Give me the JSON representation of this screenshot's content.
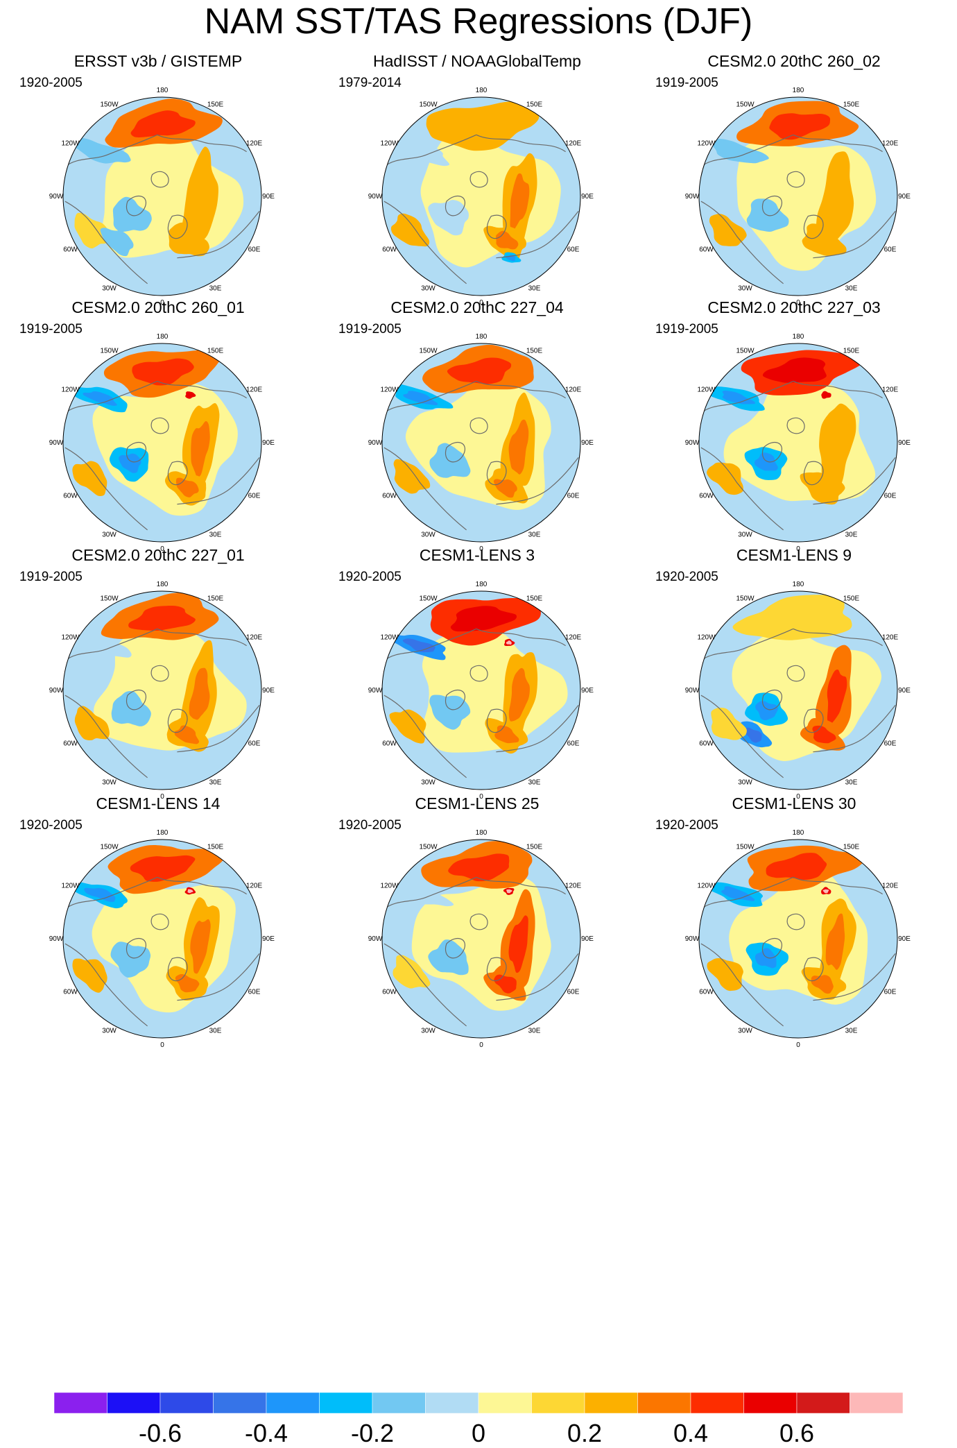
{
  "title": "NAM SST/TAS Regressions (DJF)",
  "lon_labels": [
    "180",
    "150E",
    "120E",
    "90E",
    "60E",
    "30E",
    "0",
    "30W",
    "60W",
    "90W",
    "120W",
    "150W"
  ],
  "colorbar": {
    "colors": [
      "#8b20ee",
      "#1c10f6",
      "#2e4ae8",
      "#3674e8",
      "#1e96fa",
      "#00bdfa",
      "#72c8f2",
      "#b1dcf4",
      "#fdf795",
      "#fdd734",
      "#fcb000",
      "#fb7600",
      "#fd2d00",
      "#ea0000",
      "#d31a1a",
      "#fdb8b8"
    ],
    "tick_labels": [
      "-0.6",
      "-0.4",
      "-0.2",
      "0",
      "0.2",
      "0.4",
      "0.6"
    ],
    "tick_values": [
      -0.6,
      -0.4,
      -0.2,
      0,
      0.2,
      0.4,
      0.6
    ],
    "range": [
      -0.8,
      0.8
    ]
  },
  "chart_data": [
    {
      "type": "heatmap",
      "title": "ERSST v3b / GISTEMP",
      "period": "1920-2005",
      "projection": "polar stereographic",
      "features": [
        {
          "name": "North Pacific warm anomaly",
          "value": 0.3
        },
        {
          "name": "Eurasian warm anomaly",
          "value": 0.2
        },
        {
          "name": "Labrador Sea / Greenland cool anomaly",
          "value": -0.2
        },
        {
          "name": "Gulf of Alaska cool anomaly",
          "value": -0.2
        },
        {
          "name": "Subtropical Atlantic warm anomaly",
          "value": 0.1
        },
        {
          "name": "North Atlantic subpolar cool anomaly",
          "value": -0.2
        },
        {
          "name": "Background cool ocean",
          "value": -0.05
        }
      ]
    },
    {
      "type": "heatmap",
      "title": "HadISST / NOAAGlobalTemp",
      "period": "1979-2014",
      "projection": "polar stereographic",
      "features": [
        {
          "name": "North Pacific warm anomaly",
          "value": 0.2
        },
        {
          "name": "Eurasian warm anomaly",
          "value": 0.25
        },
        {
          "name": "Labrador Sea / Greenland cool anomaly",
          "value": -0.1
        },
        {
          "name": "Gulf of Alaska cool anomaly",
          "value": -0.1
        },
        {
          "name": "Mediterranean cool anomaly",
          "value": -0.3
        },
        {
          "name": "Subtropical Atlantic warm anomaly",
          "value": 0.2
        },
        {
          "name": "Background cool ocean",
          "value": -0.05
        }
      ]
    },
    {
      "type": "heatmap",
      "title": "CESM2.0 20thC 260_02",
      "period": "1919-2005",
      "projection": "polar stereographic",
      "features": [
        {
          "name": "North Pacific warm anomaly",
          "value": 0.3
        },
        {
          "name": "Eurasian warm anomaly",
          "value": 0.2
        },
        {
          "name": "Labrador Sea / Greenland cool anomaly",
          "value": -0.2
        },
        {
          "name": "Gulf of Alaska cool anomaly",
          "value": -0.2
        },
        {
          "name": "Subtropical Atlantic warm anomaly",
          "value": 0.2
        },
        {
          "name": "Background cool ocean",
          "value": -0.05
        }
      ]
    },
    {
      "type": "heatmap",
      "title": "CESM2.0 20thC 260_01",
      "period": "1919-2005",
      "projection": "polar stereographic",
      "features": [
        {
          "name": "North Pacific warm anomaly",
          "value": 0.3
        },
        {
          "name": "Eurasian warm anomaly",
          "value": 0.25
        },
        {
          "name": "Labrador Sea / Greenland cool anomaly",
          "value": -0.3
        },
        {
          "name": "Gulf of Alaska cool anomaly",
          "value": -0.3
        },
        {
          "name": "Subtropical Atlantic warm anomaly",
          "value": 0.2
        },
        {
          "name": "East Siberian warm spot",
          "value": 0.5
        },
        {
          "name": "Background cool ocean",
          "value": -0.05
        }
      ]
    },
    {
      "type": "heatmap",
      "title": "CESM2.0 20thC 227_04",
      "period": "1919-2005",
      "projection": "polar stereographic",
      "features": [
        {
          "name": "North Pacific warm anomaly",
          "value": 0.3
        },
        {
          "name": "Eurasian warm anomaly",
          "value": 0.25
        },
        {
          "name": "Labrador Sea / Greenland cool anomaly",
          "value": -0.2
        },
        {
          "name": "Gulf of Alaska cool anomaly",
          "value": -0.3
        },
        {
          "name": "Subtropical Atlantic warm anomaly",
          "value": 0.2
        },
        {
          "name": "Background cool ocean",
          "value": -0.05
        }
      ]
    },
    {
      "type": "heatmap",
      "title": "CESM2.0 20thC 227_03",
      "period": "1919-2005",
      "projection": "polar stereographic",
      "features": [
        {
          "name": "North Pacific warm anomaly",
          "value": 0.45
        },
        {
          "name": "Eurasian warm anomaly",
          "value": 0.2
        },
        {
          "name": "Labrador Sea / Greenland cool anomaly",
          "value": -0.3
        },
        {
          "name": "Gulf of Alaska cool anomaly",
          "value": -0.3
        },
        {
          "name": "Subtropical Atlantic warm anomaly",
          "value": 0.2
        },
        {
          "name": "East Siberian warm spot",
          "value": 0.5
        },
        {
          "name": "Background cool ocean",
          "value": -0.05
        }
      ]
    },
    {
      "type": "heatmap",
      "title": "CESM2.0 20thC 227_01",
      "period": "1919-2005",
      "projection": "polar stereographic",
      "features": [
        {
          "name": "North Pacific warm anomaly",
          "value": 0.3
        },
        {
          "name": "Eurasian warm anomaly",
          "value": 0.25
        },
        {
          "name": "Labrador Sea / Greenland cool anomaly",
          "value": -0.2
        },
        {
          "name": "Gulf of Alaska cool anomaly",
          "value": -0.1
        },
        {
          "name": "Subtropical Atlantic warm anomaly",
          "value": 0.2
        },
        {
          "name": "Background cool ocean",
          "value": -0.05
        }
      ]
    },
    {
      "type": "heatmap",
      "title": "CESM1-LENS 3",
      "period": "1920-2005",
      "projection": "polar stereographic",
      "features": [
        {
          "name": "North Pacific warm anomaly",
          "value": 0.4
        },
        {
          "name": "Eurasian warm anomaly",
          "value": 0.25
        },
        {
          "name": "Labrador Sea / Greenland cool anomaly",
          "value": -0.2
        },
        {
          "name": "Gulf of Alaska cool anomaly",
          "value": -0.4
        },
        {
          "name": "Subtropical Atlantic warm anomaly",
          "value": 0.2
        },
        {
          "name": "East Siberian warm spot",
          "value": 0.6
        },
        {
          "name": "Background cool ocean",
          "value": -0.05
        }
      ]
    },
    {
      "type": "heatmap",
      "title": "CESM1-LENS 9",
      "period": "1920-2005",
      "projection": "polar stereographic",
      "features": [
        {
          "name": "North Pacific warm anomaly",
          "value": 0.1
        },
        {
          "name": "Eurasian warm anomaly",
          "value": 0.35
        },
        {
          "name": "Labrador Sea / Greenland cool anomaly",
          "value": -0.3
        },
        {
          "name": "North Atlantic subpolar cool anomaly",
          "value": -0.4
        },
        {
          "name": "Subtropical Atlantic warm anomaly",
          "value": 0.1
        },
        {
          "name": "Background cool ocean",
          "value": -0.05
        }
      ]
    },
    {
      "type": "heatmap",
      "title": "CESM1-LENS 14",
      "period": "1920-2005",
      "projection": "polar stereographic",
      "features": [
        {
          "name": "North Pacific warm anomaly",
          "value": 0.3
        },
        {
          "name": "Eurasian warm anomaly",
          "value": 0.25
        },
        {
          "name": "Labrador Sea / Greenland cool anomaly",
          "value": -0.2
        },
        {
          "name": "Gulf of Alaska cool anomaly",
          "value": -0.3
        },
        {
          "name": "Subtropical Atlantic warm anomaly",
          "value": 0.2
        },
        {
          "name": "East Siberian warm spot",
          "value": 0.6
        },
        {
          "name": "Background cool ocean",
          "value": -0.05
        }
      ]
    },
    {
      "type": "heatmap",
      "title": "CESM1-LENS 25",
      "period": "1920-2005",
      "projection": "polar stereographic",
      "features": [
        {
          "name": "North Pacific warm anomaly",
          "value": 0.3
        },
        {
          "name": "Eurasian warm anomaly",
          "value": 0.3
        },
        {
          "name": "Labrador Sea / Greenland cool anomaly",
          "value": -0.2
        },
        {
          "name": "Gulf of Alaska cool anomaly",
          "value": -0.1
        },
        {
          "name": "Subtropical Atlantic warm anomaly",
          "value": 0.1
        },
        {
          "name": "East Siberian warm spot",
          "value": 0.6
        },
        {
          "name": "Background cool ocean",
          "value": -0.05
        }
      ]
    },
    {
      "type": "heatmap",
      "title": "CESM1-LENS 30",
      "period": "1920-2005",
      "projection": "polar stereographic",
      "features": [
        {
          "name": "North Pacific warm anomaly",
          "value": 0.35
        },
        {
          "name": "Eurasian warm anomaly",
          "value": 0.25
        },
        {
          "name": "Labrador Sea / Greenland cool anomaly",
          "value": -0.3
        },
        {
          "name": "Gulf of Alaska cool anomaly",
          "value": -0.3
        },
        {
          "name": "Subtropical Atlantic warm anomaly",
          "value": 0.2
        },
        {
          "name": "East Siberian warm spot",
          "value": 0.6
        },
        {
          "name": "Background cool ocean",
          "value": -0.05
        }
      ]
    }
  ]
}
